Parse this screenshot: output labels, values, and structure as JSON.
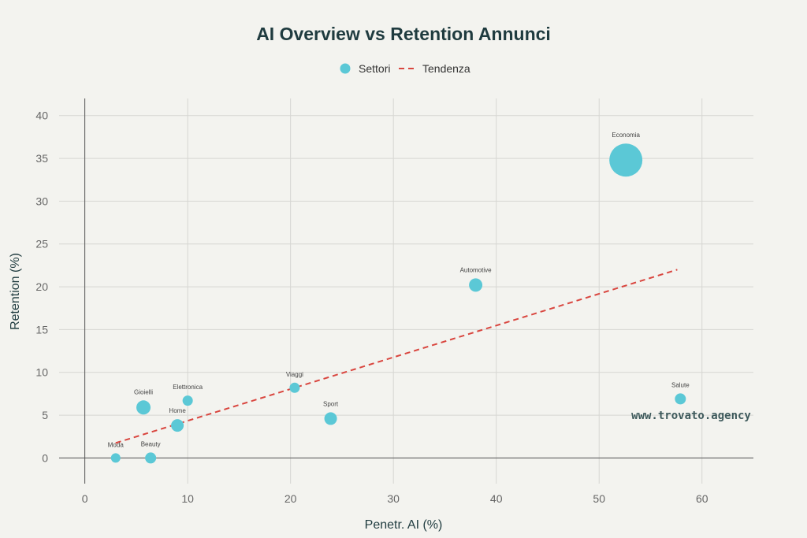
{
  "chart_data": {
    "type": "scatter",
    "title": "AI Overview vs Retention Annunci",
    "xlabel": "Penetr. AI (%)",
    "ylabel": "Retention (%)",
    "xlim": [
      -2.5,
      65
    ],
    "ylim": [
      -3,
      42
    ],
    "xticks": [
      0,
      10,
      20,
      30,
      40,
      50,
      60
    ],
    "yticks": [
      0,
      5,
      10,
      15,
      20,
      25,
      30,
      35,
      40
    ],
    "grid": true,
    "legend_position": "top-center",
    "legend": [
      "Settori",
      "Tendenza"
    ],
    "colors": {
      "points": "#5bc8d6",
      "trend": "#d9463f"
    },
    "series": [
      {
        "name": "Settori",
        "points": [
          {
            "label": "Moda",
            "x": 3.0,
            "y": 0.0,
            "size": 6
          },
          {
            "label": "Beauty",
            "x": 6.4,
            "y": 0.0,
            "size": 7
          },
          {
            "label": "Gioielli",
            "x": 5.7,
            "y": 5.9,
            "size": 9
          },
          {
            "label": "Elettronica",
            "x": 10.0,
            "y": 6.7,
            "size": 6.5
          },
          {
            "label": "Home",
            "x": 9.0,
            "y": 3.8,
            "size": 8
          },
          {
            "label": "Viaggi",
            "x": 20.4,
            "y": 8.2,
            "size": 6.5
          },
          {
            "label": "Sport",
            "x": 23.9,
            "y": 4.6,
            "size": 8
          },
          {
            "label": "Automotive",
            "x": 38.0,
            "y": 20.2,
            "size": 8.5
          },
          {
            "label": "Economia",
            "x": 52.6,
            "y": 34.8,
            "size": 21
          },
          {
            "label": "Salute",
            "x": 57.9,
            "y": 6.9,
            "size": 7
          }
        ]
      },
      {
        "name": "Tendenza",
        "type": "line",
        "x": [
          3.0,
          57.6
        ],
        "y": [
          1.75,
          22.0
        ]
      }
    ]
  },
  "watermark": "www.trovato.agency"
}
